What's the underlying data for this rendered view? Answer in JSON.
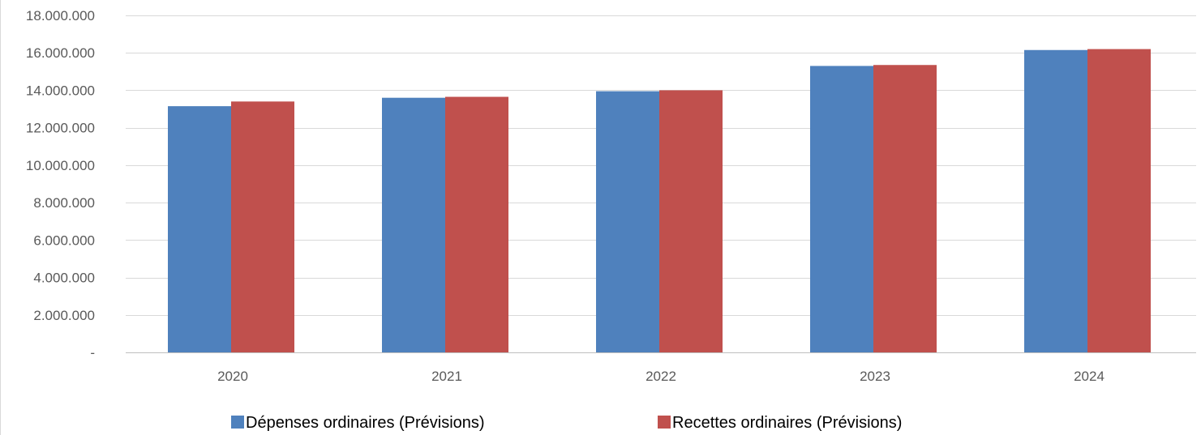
{
  "chart_data": {
    "type": "bar",
    "title": "",
    "xlabel": "",
    "ylabel": "",
    "categories": [
      "2020",
      "2021",
      "2022",
      "2023",
      "2024"
    ],
    "ylim": [
      0,
      18000000
    ],
    "y_ticks": [
      0,
      2000000,
      4000000,
      6000000,
      8000000,
      10000000,
      12000000,
      14000000,
      16000000,
      18000000
    ],
    "y_tick_labels": [
      "-",
      "2.000.000",
      "4.000.000",
      "6.000.000",
      "8.000.000",
      "10.000.000",
      "12.000.000",
      "14.000.000",
      "16.000.000",
      "18.000.000"
    ],
    "grid": true,
    "legend_position": "bottom",
    "series": [
      {
        "name": "Dépenses ordinaires (Prévisions)",
        "color": "#4f81bd",
        "values": [
          13150000,
          13600000,
          13950000,
          15300000,
          16150000
        ]
      },
      {
        "name": "Recettes ordinaires (Prévisions)",
        "color": "#c0504d",
        "values": [
          13400000,
          13650000,
          14000000,
          15350000,
          16200000
        ]
      }
    ]
  }
}
